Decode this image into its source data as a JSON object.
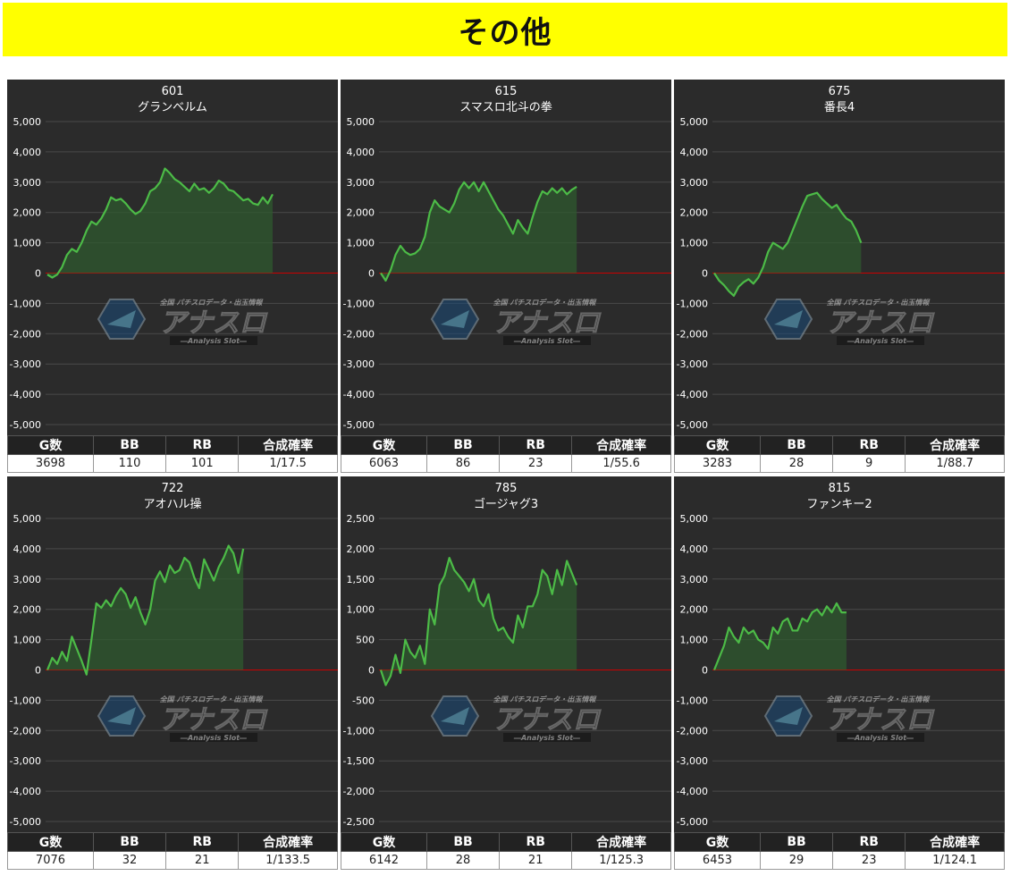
{
  "page_title": "その他",
  "stat_headers": {
    "games": "G数",
    "bb": "BB",
    "rb": "RB",
    "prob": "合成確率"
  },
  "watermark": {
    "main": "アナスロ",
    "sub": "―Analysis Slot―",
    "top": "全国 パチスロデータ・出玉情報"
  },
  "colors": {
    "background": "#2b2b2b",
    "line": "#4cbb47",
    "fill": "#2f5a2f",
    "zero": "#cc0000",
    "grid": "#4a4a4a",
    "header": "#ffff00"
  },
  "chart_data": [
    {
      "type": "area",
      "id": "601",
      "name": "グランベルム",
      "ylim": [
        -5000,
        5000
      ],
      "yticks": [
        5000,
        4000,
        3000,
        2000,
        1000,
        0,
        -1000,
        -2000,
        -3000,
        -4000,
        -5000
      ],
      "ytick_labels": [
        "5,000",
        "4,000",
        "3,000",
        "2,000",
        "1,000",
        "0",
        "-1,000",
        "-2,000",
        "-3,000",
        "-4,000",
        "-5,000"
      ],
      "games": "3698",
      "bb": "110",
      "rb": "101",
      "prob": "1/17.5",
      "values": [
        -50,
        -150,
        -50,
        200,
        600,
        800,
        700,
        1000,
        1400,
        1700,
        1600,
        1800,
        2100,
        2500,
        2400,
        2450,
        2300,
        2100,
        1950,
        2050,
        2300,
        2700,
        2800,
        3000,
        3450,
        3300,
        3100,
        3000,
        2850,
        2700,
        2950,
        2750,
        2800,
        2650,
        2800,
        3050,
        2950,
        2750,
        2700,
        2550,
        2400,
        2450,
        2300,
        2250,
        2500,
        2300,
        2600
      ]
    },
    {
      "type": "area",
      "id": "615",
      "name": "スマスロ北斗の拳",
      "ylim": [
        -5000,
        5000
      ],
      "yticks": [
        5000,
        4000,
        3000,
        2000,
        1000,
        0,
        -1000,
        -2000,
        -3000,
        -4000,
        -5000
      ],
      "ytick_labels": [
        "5,000",
        "4,000",
        "3,000",
        "2,000",
        "1,000",
        "0",
        "-1,000",
        "-2,000",
        "-3,000",
        "-4,000",
        "-5,000"
      ],
      "games": "6063",
      "bb": "86",
      "rb": "23",
      "prob": "1/55.6",
      "values": [
        0,
        -250,
        100,
        600,
        900,
        700,
        600,
        650,
        800,
        1200,
        2000,
        2400,
        2200,
        2100,
        2000,
        2300,
        2750,
        3000,
        2800,
        3000,
        2700,
        3000,
        2700,
        2400,
        2100,
        1900,
        1600,
        1300,
        1750,
        1500,
        1300,
        1850,
        2350,
        2700,
        2600,
        2800,
        2650,
        2800,
        2600,
        2750,
        2850
      ]
    },
    {
      "type": "area",
      "id": "675",
      "name": "番長4",
      "ylim": [
        -5000,
        5000
      ],
      "yticks": [
        5000,
        4000,
        3000,
        2000,
        1000,
        0,
        -1000,
        -2000,
        -3000,
        -4000,
        -5000
      ],
      "ytick_labels": [
        "5,000",
        "4,000",
        "3,000",
        "2,000",
        "1,000",
        "0",
        "-1,000",
        "-2,000",
        "-3,000",
        "-4,000",
        "-5,000"
      ],
      "games": "3283",
      "bb": "28",
      "rb": "9",
      "prob": "1/88.7",
      "values": [
        0,
        -250,
        -400,
        -600,
        -750,
        -450,
        -300,
        -200,
        -350,
        -150,
        200,
        700,
        1000,
        900,
        800,
        1000,
        1400,
        1800,
        2200,
        2550,
        2600,
        2650,
        2450,
        2300,
        2150,
        2250,
        2000,
        1800,
        1700,
        1400,
        1000
      ]
    },
    {
      "type": "area",
      "id": "722",
      "name": "アオハル操",
      "ylim": [
        -5000,
        5000
      ],
      "yticks": [
        5000,
        4000,
        3000,
        2000,
        1000,
        0,
        -1000,
        -2000,
        -3000,
        -4000,
        -5000
      ],
      "ytick_labels": [
        "5,000",
        "4,000",
        "3,000",
        "2,000",
        "1,000",
        "0",
        "-1,000",
        "-2,000",
        "-3,000",
        "-4,000",
        "-5,000"
      ],
      "games": "7076",
      "bb": "32",
      "rb": "21",
      "prob": "1/133.5",
      "values": [
        0,
        400,
        200,
        600,
        300,
        1100,
        700,
        300,
        -150,
        1000,
        2200,
        2050,
        2300,
        2100,
        2450,
        2700,
        2500,
        2050,
        2400,
        1900,
        1500,
        2000,
        2950,
        3250,
        2900,
        3450,
        3200,
        3300,
        3700,
        3550,
        3050,
        2700,
        3650,
        3300,
        2950,
        3400,
        3700,
        4100,
        3850,
        3200,
        4000
      ]
    },
    {
      "type": "area",
      "id": "785",
      "name": "ゴージャグ3",
      "ylim": [
        -2500,
        2500
      ],
      "yticks": [
        2500,
        2000,
        1500,
        1000,
        500,
        0,
        -500,
        -1000,
        -1500,
        -2000,
        -2500
      ],
      "ytick_labels": [
        "2,500",
        "2,000",
        "1,500",
        "1,000",
        "500",
        "0",
        "-500",
        "-1,000",
        "-1,500",
        "-2,000",
        "-2,500"
      ],
      "games": "6142",
      "bb": "28",
      "rb": "21",
      "prob": "1/125.3",
      "values": [
        0,
        -250,
        -100,
        250,
        -50,
        500,
        300,
        200,
        400,
        100,
        1000,
        750,
        1400,
        1550,
        1850,
        1650,
        1550,
        1450,
        1300,
        1500,
        1150,
        1050,
        1250,
        850,
        650,
        700,
        550,
        450,
        900,
        700,
        1050,
        1050,
        1250,
        1650,
        1550,
        1250,
        1650,
        1400,
        1800,
        1600,
        1400
      ]
    },
    {
      "type": "area",
      "id": "815",
      "name": "ファンキー2",
      "ylim": [
        -5000,
        5000
      ],
      "yticks": [
        5000,
        4000,
        3000,
        2000,
        1000,
        0,
        -1000,
        -2000,
        -3000,
        -4000,
        -5000
      ],
      "ytick_labels": [
        "5,000",
        "4,000",
        "3,000",
        "2,000",
        "1,000",
        "0",
        "-1,000",
        "-2,000",
        "-3,000",
        "-4,000",
        "-5,000"
      ],
      "games": "6453",
      "bb": "29",
      "rb": "23",
      "prob": "1/124.1",
      "values": [
        0,
        400,
        800,
        1400,
        1100,
        900,
        1400,
        1200,
        1300,
        1000,
        900,
        700,
        1400,
        1200,
        1600,
        1700,
        1300,
        1300,
        1700,
        1600,
        1900,
        2000,
        1800,
        2100,
        1900,
        2200,
        1900,
        1900
      ]
    }
  ]
}
